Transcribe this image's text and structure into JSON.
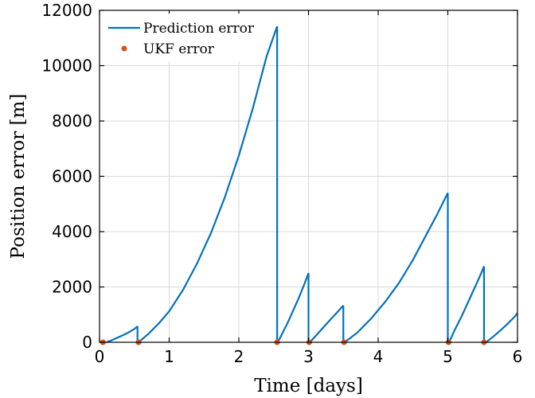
{
  "chart_data": {
    "type": "line",
    "xlabel": "Time [days]",
    "ylabel": "Position error [m]",
    "xlim": [
      0,
      6
    ],
    "ylim": [
      0,
      12000
    ],
    "xticks": [
      0,
      1,
      2,
      3,
      4,
      5,
      6
    ],
    "yticks": [
      0,
      2000,
      4000,
      6000,
      8000,
      10000,
      12000
    ],
    "grid": true,
    "legend_position": "top-left",
    "series": [
      {
        "name": "Prediction error",
        "type": "line",
        "color": "#0072BD",
        "segments": [
          {
            "x": [
              0.1,
              0.18,
              0.26,
              0.34,
              0.42,
              0.5,
              0.545
            ],
            "y": [
              0,
              80,
              170,
              260,
              360,
              480,
              580
            ]
          },
          {
            "x": [
              0.56,
              0.7,
              0.85,
              1.0,
              1.2,
              1.4,
              1.6,
              1.8,
              2.0,
              2.2,
              2.4,
              2.55
            ],
            "y": [
              0,
              300,
              680,
              1120,
              1900,
              2850,
              3950,
              5250,
              6750,
              8450,
              10350,
              11420
            ]
          },
          {
            "x": [
              2.56,
              2.62,
              2.7,
              2.78,
              2.86,
              2.94,
              3.0
            ],
            "y": [
              0,
              300,
              700,
              1150,
              1600,
              2100,
              2500
            ]
          },
          {
            "x": [
              3.02,
              3.1,
              3.2,
              3.3,
              3.4,
              3.5
            ],
            "y": [
              0,
              220,
              500,
              780,
              1050,
              1330
            ]
          },
          {
            "x": [
              3.52,
              3.7,
              3.9,
              4.1,
              4.3,
              4.5,
              4.7,
              4.85,
              5.0
            ],
            "y": [
              0,
              350,
              860,
              1460,
              2150,
              2980,
              3930,
              4640,
              5400
            ]
          },
          {
            "x": [
              5.02,
              5.1,
              5.2,
              5.3,
              5.4,
              5.48,
              5.52
            ],
            "y": [
              0,
              450,
              950,
              1500,
              2050,
              2500,
              2750
            ]
          },
          {
            "x": [
              5.55,
              5.65,
              5.75,
              5.85,
              5.95,
              6.0
            ],
            "y": [
              0,
              200,
              420,
              650,
              900,
              1050
            ]
          }
        ]
      },
      {
        "name": "UKF error",
        "type": "scatter",
        "color": "#D95319",
        "x": [
          0.05,
          0.56,
          2.55,
          3.01,
          3.51,
          5.01,
          5.52
        ],
        "y": [
          0,
          0,
          0,
          0,
          0,
          0,
          0
        ]
      }
    ]
  }
}
